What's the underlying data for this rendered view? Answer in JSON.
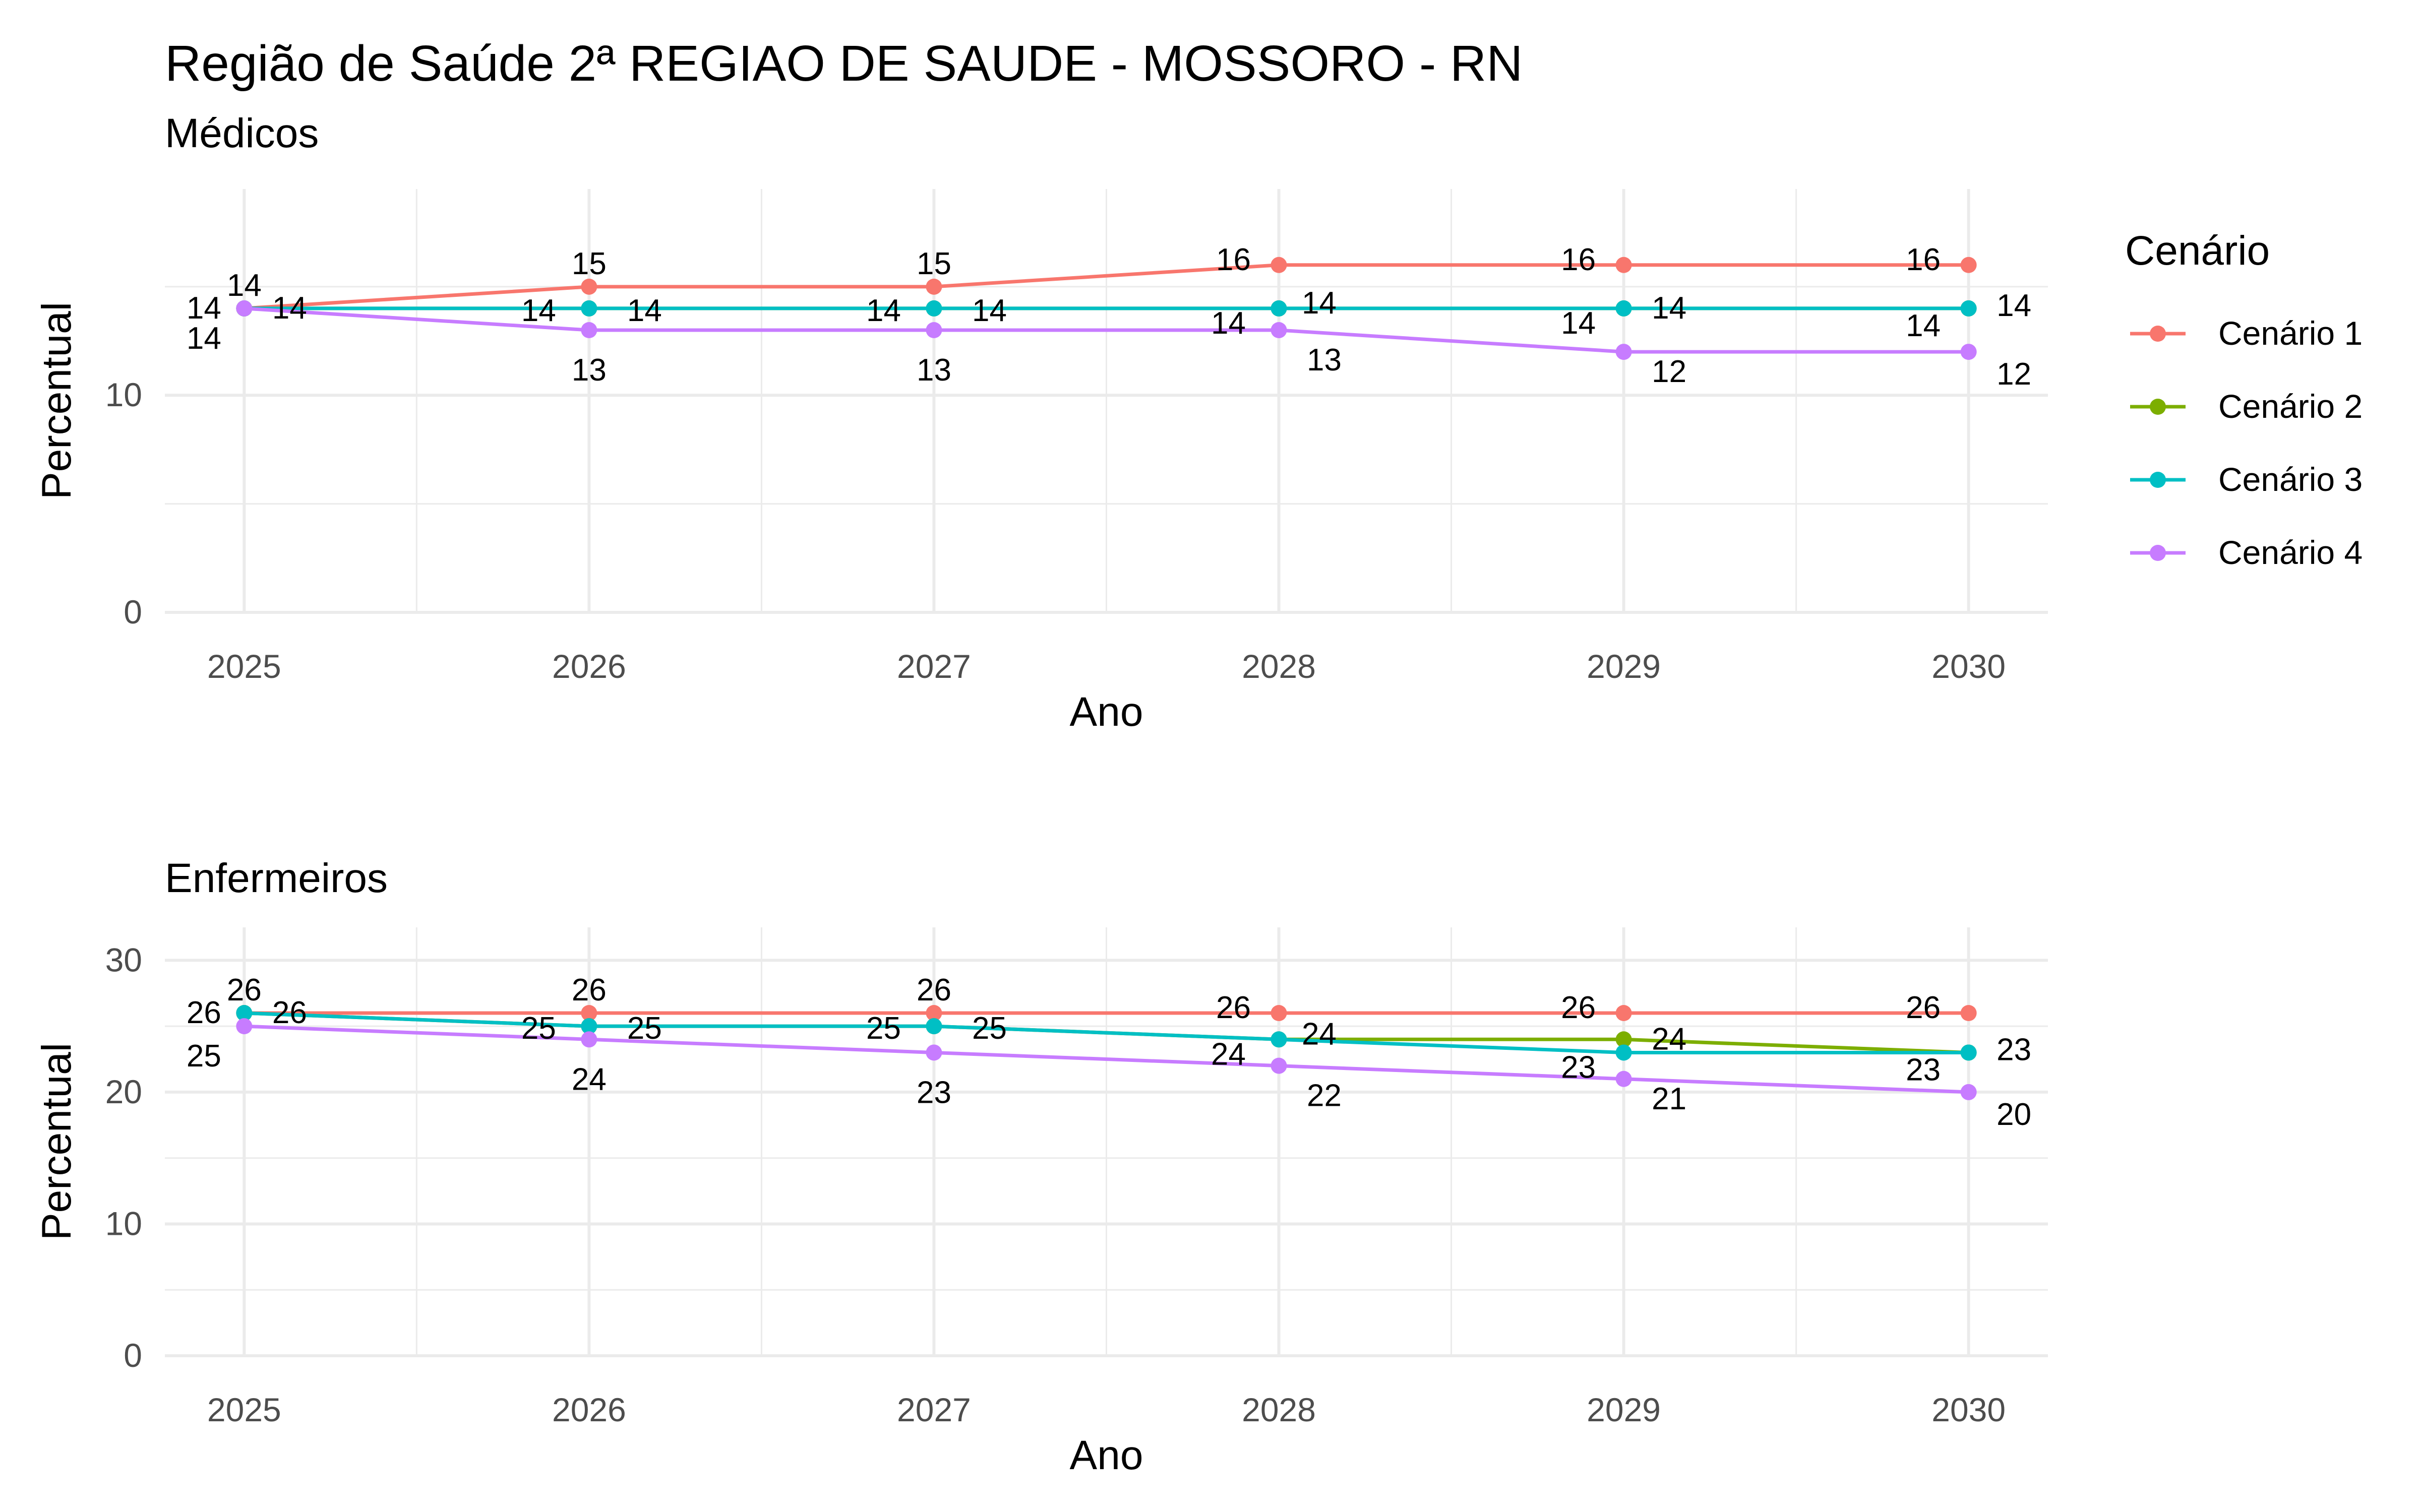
{
  "title": "Região de Saúde 2ª REGIAO DE SAUDE - MOSSORO - RN",
  "legend": {
    "title": "Cenário",
    "items": [
      {
        "label": "Cenário 1",
        "color": "#F8766D"
      },
      {
        "label": "Cenário 2",
        "color": "#7CAE00"
      },
      {
        "label": "Cenário 3",
        "color": "#00BFC4"
      },
      {
        "label": "Cenário 4",
        "color": "#C77CFF"
      }
    ]
  },
  "chart_data": [
    {
      "type": "line",
      "subtitle": "Médicos",
      "xlabel": "Ano",
      "ylabel": "Percentual",
      "x": [
        2025,
        2026,
        2027,
        2028,
        2029,
        2030
      ],
      "ylim": [
        0,
        19.5
      ],
      "yticks": [
        0,
        10
      ],
      "grid": true,
      "legend_position": "right",
      "series": [
        {
          "name": "Cenário 1",
          "values": [
            14,
            15,
            15,
            16,
            16,
            16
          ]
        },
        {
          "name": "Cenário 2",
          "values": [
            14,
            14,
            14,
            14,
            14,
            14
          ]
        },
        {
          "name": "Cenário 3",
          "values": [
            14,
            14,
            14,
            14,
            14,
            14
          ]
        },
        {
          "name": "Cenário 4",
          "values": [
            14,
            13,
            13,
            13,
            12,
            12
          ]
        }
      ]
    },
    {
      "type": "line",
      "subtitle": "Enfermeiros",
      "xlabel": "Ano",
      "ylabel": "Percentual",
      "x": [
        2025,
        2026,
        2027,
        2028,
        2029,
        2030
      ],
      "ylim": [
        0,
        32.5
      ],
      "yticks": [
        0,
        10,
        20,
        30
      ],
      "grid": true,
      "legend_position": "right",
      "series": [
        {
          "name": "Cenário 1",
          "values": [
            26,
            26,
            26,
            26,
            26,
            26
          ]
        },
        {
          "name": "Cenário 2",
          "values": [
            26,
            25,
            25,
            24,
            24,
            23
          ]
        },
        {
          "name": "Cenário 3",
          "values": [
            26,
            25,
            25,
            24,
            23,
            23
          ]
        },
        {
          "name": "Cenário 4",
          "values": [
            25,
            24,
            23,
            22,
            21,
            20
          ]
        }
      ]
    }
  ]
}
